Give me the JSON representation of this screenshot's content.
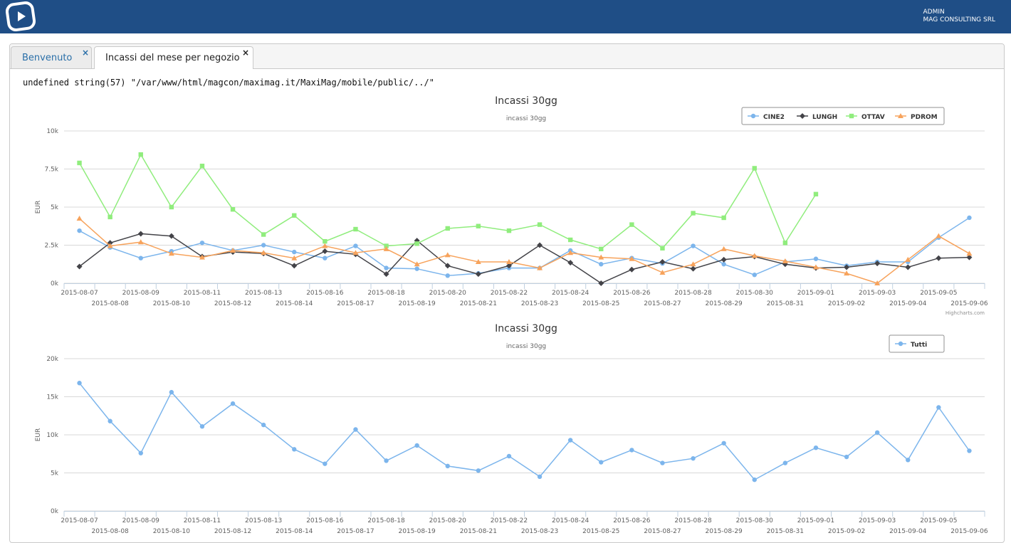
{
  "header": {
    "user_name": "ADMIN",
    "company": "MAG CONSULTING SRL"
  },
  "tabs": [
    {
      "label": "Benvenuto",
      "close": "×"
    },
    {
      "label": "Incassi del mese per negozio",
      "close": "×"
    }
  ],
  "debug_text": "undefined string(57) \"/var/www/html/magcon/maximag.it/MaxiMag/mobile/public/../\"",
  "colors": {
    "topbar": "#1f4e86",
    "CINE2": "#7cb5ec",
    "LUNGH": "#434348",
    "OTTAV": "#90ed7d",
    "PDROM": "#f7a35c"
  },
  "credits": "Highcharts.com",
  "chart_data": [
    {
      "type": "line",
      "title": "Incassi 30gg",
      "subtitle": "incassi 30gg",
      "ylabel": "EUR",
      "ylim": [
        0,
        10000
      ],
      "yticks": [
        "0k",
        "2.5k",
        "5k",
        "7.5k",
        "10k"
      ],
      "legend": "top-right",
      "grid": true,
      "categories": [
        "2015-08-07",
        "2015-08-08",
        "2015-08-09",
        "2015-08-10",
        "2015-08-11",
        "2015-08-12",
        "2015-08-13",
        "2015-08-14",
        "2015-08-16",
        "2015-08-17",
        "2015-08-18",
        "2015-08-19",
        "2015-08-20",
        "2015-08-21",
        "2015-08-22",
        "2015-08-23",
        "2015-08-24",
        "2015-08-25",
        "2015-08-26",
        "2015-08-27",
        "2015-08-28",
        "2015-08-29",
        "2015-08-30",
        "2015-08-31",
        "2015-09-01",
        "2015-09-02",
        "2015-09-03",
        "2015-09-04",
        "2015-09-05",
        "2015-09-06"
      ],
      "series": [
        {
          "name": "CINE2",
          "marker": "circle",
          "values": [
            3450,
            2350,
            1650,
            2100,
            2650,
            2150,
            2500,
            2050,
            1650,
            2450,
            1000,
            950,
            500,
            650,
            1000,
            1000,
            2150,
            1250,
            1650,
            1300,
            2450,
            1250,
            550,
            1400,
            1600,
            1150,
            1400,
            1400,
            3000,
            4300
          ]
        },
        {
          "name": "LUNGH",
          "marker": "diamond",
          "values": [
            1100,
            2650,
            3250,
            3100,
            1750,
            2050,
            1950,
            1150,
            2100,
            1900,
            600,
            2800,
            1150,
            600,
            1150,
            2500,
            1350,
            0,
            900,
            1400,
            950,
            1550,
            1750,
            1250,
            1000,
            1050,
            1300,
            1050,
            1650,
            1700
          ]
        },
        {
          "name": "OTTAV",
          "marker": "square",
          "values": [
            7900,
            4350,
            8450,
            5000,
            7700,
            4850,
            3200,
            4450,
            2750,
            3550,
            2450,
            2600,
            3600,
            3750,
            3450,
            3850,
            2850,
            2250,
            3850,
            2300,
            4600,
            4300,
            7550,
            2650,
            5850,
            null,
            null,
            null,
            null,
            null
          ]
        },
        {
          "name": "PDROM",
          "marker": "triangle",
          "values": [
            4250,
            2450,
            2700,
            1950,
            1700,
            2150,
            2000,
            1650,
            2450,
            2000,
            2250,
            1250,
            1850,
            1400,
            1400,
            1000,
            2000,
            1700,
            1600,
            700,
            1250,
            2250,
            1800,
            1450,
            1050,
            650,
            0,
            1550,
            3100,
            1950
          ]
        }
      ]
    },
    {
      "type": "line",
      "title": "Incassi 30gg",
      "subtitle": "incassi 30gg",
      "ylabel": "EUR",
      "ylim": [
        0,
        20000
      ],
      "yticks": [
        "0k",
        "5k",
        "10k",
        "15k",
        "20k"
      ],
      "legend": "top-right",
      "grid": true,
      "categories": [
        "2015-08-07",
        "2015-08-08",
        "2015-08-09",
        "2015-08-10",
        "2015-08-11",
        "2015-08-12",
        "2015-08-13",
        "2015-08-14",
        "2015-08-16",
        "2015-08-17",
        "2015-08-18",
        "2015-08-19",
        "2015-08-20",
        "2015-08-21",
        "2015-08-22",
        "2015-08-23",
        "2015-08-24",
        "2015-08-25",
        "2015-08-26",
        "2015-08-27",
        "2015-08-28",
        "2015-08-29",
        "2015-08-30",
        "2015-08-31",
        "2015-09-01",
        "2015-09-02",
        "2015-09-03",
        "2015-09-04",
        "2015-09-05",
        "2015-09-06"
      ],
      "series": [
        {
          "name": "Tutti",
          "marker": "circle",
          "values": [
            16800,
            11800,
            7600,
            15600,
            11100,
            14100,
            11300,
            8100,
            6200,
            10700,
            6600,
            8600,
            5900,
            5300,
            7200,
            4500,
            9300,
            6400,
            8000,
            6300,
            6900,
            8900,
            4100,
            6300,
            8300,
            7100,
            10300,
            6700,
            13600,
            7900
          ]
        }
      ]
    }
  ]
}
